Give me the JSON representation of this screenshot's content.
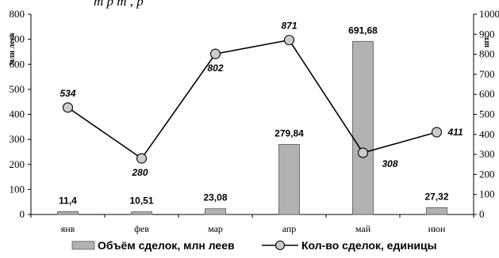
{
  "partial_title": "т     р      т ,      р",
  "chart_data": {
    "type": "bar",
    "categories": [
      "янв",
      "фев",
      "мар",
      "апр",
      "май",
      "июн"
    ],
    "series": [
      {
        "name": "Объём сделок, млн леев",
        "type": "bar",
        "axis": "left",
        "values": [
          11.4,
          10.51,
          23.08,
          279.84,
          691.68,
          27.32
        ],
        "labels": [
          "11,4",
          "10,51",
          "23,08",
          "279,84",
          "691,68",
          "27,32"
        ]
      },
      {
        "name": "Кол-во сделок, единицы",
        "type": "line",
        "axis": "right",
        "values": [
          534,
          280,
          802,
          871,
          308,
          411
        ],
        "labels": [
          "534",
          "280",
          "802",
          "871",
          "308",
          "411"
        ]
      }
    ],
    "ylabel_left": "млн леев",
    "ylabel_right": "шт.",
    "ylim_left": [
      0,
      800
    ],
    "yticks_left": [
      "0",
      "100",
      "200",
      "300",
      "400",
      "500",
      "600",
      "700",
      "800"
    ],
    "ylim_right": [
      0,
      1000
    ],
    "yticks_right": [
      "0",
      "100",
      "200",
      "300",
      "400",
      "500",
      "600",
      "700",
      "800",
      "900",
      "1000"
    ],
    "grid": false,
    "legend_position": "bottom",
    "colors": {
      "bar_fill": "#b2b2b2",
      "bar_stroke": "#555555",
      "line": "#000000",
      "marker_fill": "#cccccc"
    }
  }
}
